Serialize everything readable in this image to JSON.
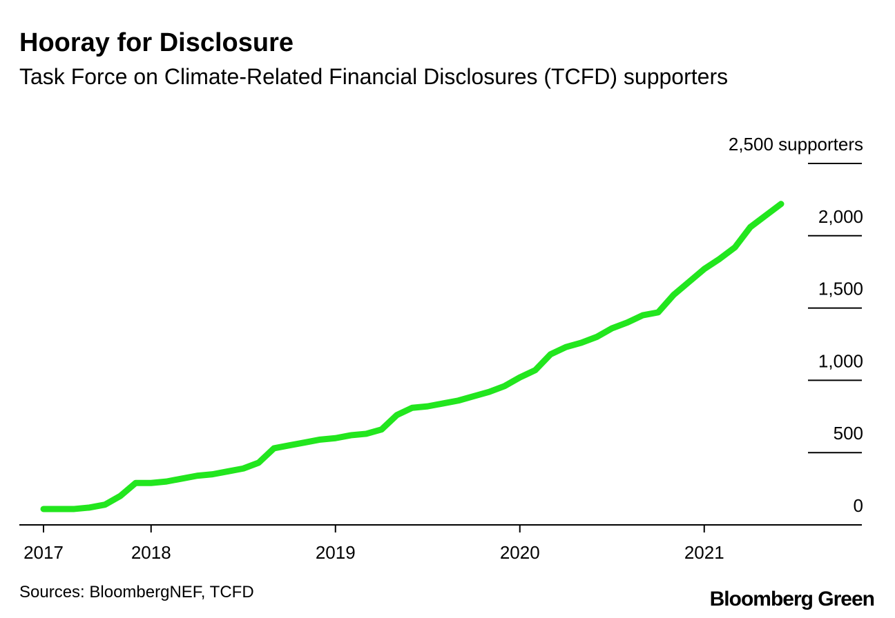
{
  "chart_data": {
    "type": "line",
    "title": "Hooray for Disclosure",
    "subtitle": "Task Force on Climate-Related Financial Disclosures (TCFD) supporters",
    "source": "Sources: BloombergNEF, TCFD",
    "logo": "Bloomberg Green",
    "categories": [
      "2017",
      null,
      null,
      null,
      null,
      null,
      null,
      "2018",
      null,
      null,
      null,
      null,
      null,
      null,
      null,
      null,
      null,
      null,
      null,
      "2019",
      null,
      null,
      null,
      null,
      null,
      null,
      null,
      null,
      null,
      null,
      null,
      "2020",
      null,
      null,
      null,
      null,
      null,
      null,
      null,
      null,
      null,
      null,
      null,
      "2021",
      null,
      null,
      null,
      null,
      null
    ],
    "series": [
      {
        "name": "TCFD supporters",
        "color": "#22e61e",
        "values": [
          110,
          110,
          110,
          120,
          140,
          200,
          290,
          290,
          300,
          320,
          340,
          350,
          370,
          390,
          430,
          530,
          550,
          570,
          590,
          600,
          620,
          630,
          660,
          760,
          810,
          820,
          840,
          860,
          890,
          920,
          960,
          1020,
          1070,
          1180,
          1230,
          1260,
          1300,
          1360,
          1400,
          1450,
          1470,
          1590,
          1680,
          1770,
          1840,
          1920,
          2060,
          2140,
          2220
        ]
      }
    ],
    "ylim": [
      0,
      2500
    ],
    "yticks": [
      0,
      {
        "value": 500,
        "label": "500"
      },
      {
        "value": 1000,
        "label": "1,000"
      },
      {
        "value": 1500,
        "label": "1,500"
      },
      {
        "value": 2000,
        "label": "2,000"
      },
      {
        "value": 2500,
        "label": "2,500 supporters"
      }
    ],
    "grid": false
  }
}
